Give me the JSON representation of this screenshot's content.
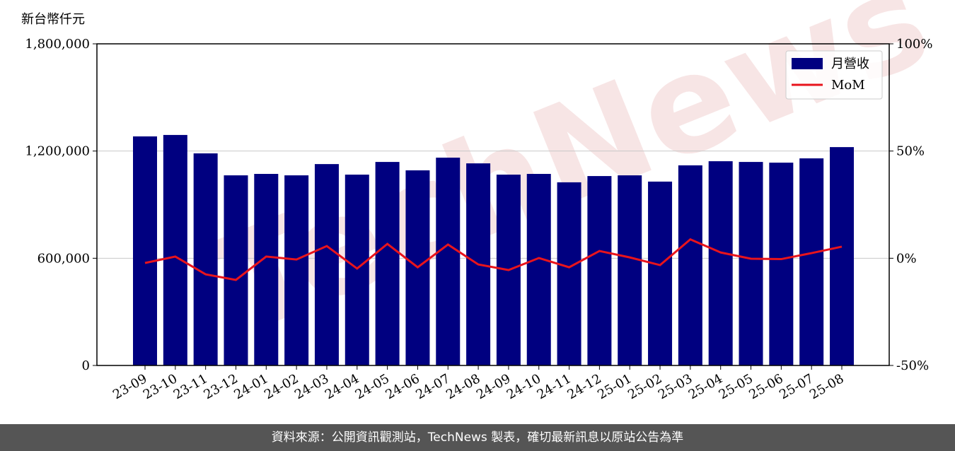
{
  "chart_data": {
    "type": "bar_line",
    "ylabel": "新台幣仟元",
    "watermark": "TechNews",
    "footer": "資料來源：公開資訊觀測站，TechNews 製表，確切最新訊息以原站公告為準",
    "categories": [
      "23-09",
      "23-10",
      "23-11",
      "23-12",
      "24-01",
      "24-02",
      "24-03",
      "24-04",
      "24-05",
      "24-06",
      "24-07",
      "24-08",
      "24-09",
      "24-10",
      "24-11",
      "24-12",
      "25-01",
      "25-02",
      "25-03",
      "25-04",
      "25-05",
      "25-06",
      "25-07",
      "25-08"
    ],
    "series": [
      {
        "name": "月營收",
        "type": "bar",
        "color": "#000080",
        "values": [
          1282000,
          1290000,
          1187000,
          1064000,
          1072000,
          1064000,
          1127000,
          1068000,
          1139000,
          1092000,
          1163000,
          1131000,
          1068000,
          1072000,
          1025000,
          1060000,
          1064000,
          1029000,
          1120000,
          1143000,
          1139000,
          1135000,
          1159000,
          1222000
        ]
      },
      {
        "name": "MoM",
        "type": "line",
        "color": "#e8141c",
        "axis": "y2",
        "values": [
          -2.2,
          0.8,
          -7.5,
          -10.1,
          0.8,
          -0.6,
          5.7,
          -4.8,
          6.7,
          -4.2,
          6.4,
          -2.9,
          -5.5,
          0.1,
          -4.2,
          3.4,
          0.4,
          -3.2,
          8.8,
          2.7,
          -0.2,
          -0.4,
          2.4,
          5.4
        ]
      }
    ],
    "ylim": [
      0,
      1800000
    ],
    "yticks": [
      {
        "value": 0,
        "label": "0"
      },
      {
        "value": 600000,
        "label": "600,000"
      },
      {
        "value": 1200000,
        "label": "1,200,000"
      },
      {
        "value": 1800000,
        "label": "1,800,000"
      }
    ],
    "y2lim": [
      -50,
      100
    ],
    "y2ticks": [
      {
        "value": -50,
        "label": "-50%"
      },
      {
        "value": 0,
        "label": "0%"
      },
      {
        "value": 50,
        "label": "50%"
      },
      {
        "value": 100,
        "label": "100%"
      }
    ],
    "grid": true,
    "legend": "upper right"
  }
}
